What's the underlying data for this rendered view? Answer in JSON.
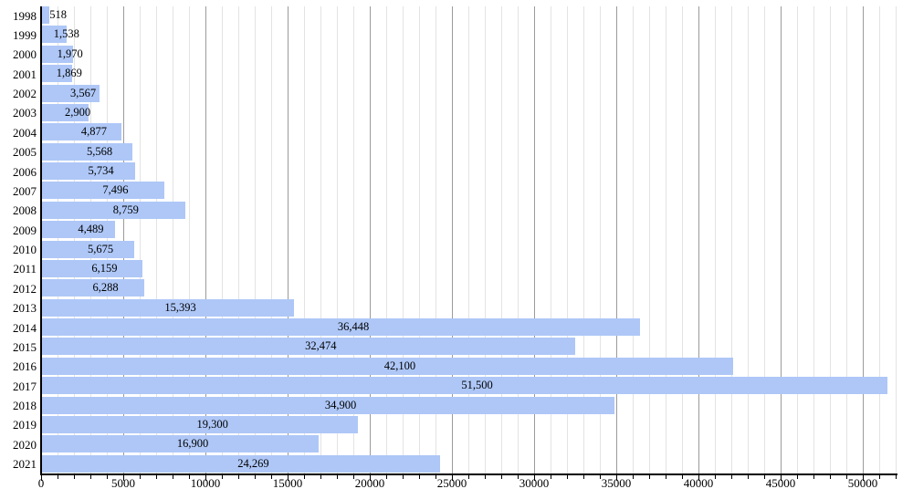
{
  "chart_data": {
    "type": "bar",
    "orientation": "horizontal",
    "title": "",
    "xlabel": "",
    "ylabel": "",
    "legend": "none",
    "grid": "vertical, minor every 1000 (light), major every 5000 (dark)",
    "categories": [
      "1998",
      "1999",
      "2000",
      "2001",
      "2002",
      "2003",
      "2004",
      "2005",
      "2006",
      "2007",
      "2008",
      "2009",
      "2010",
      "2011",
      "2012",
      "2013",
      "2014",
      "2015",
      "2016",
      "2017",
      "2018",
      "2019",
      "2020",
      "2021"
    ],
    "values": [
      518,
      1538,
      1970,
      1869,
      3567,
      2900,
      4877,
      5568,
      5734,
      7496,
      8759,
      4489,
      5675,
      6159,
      6288,
      15393,
      36448,
      32474,
      42100,
      51500,
      34900,
      19300,
      16900,
      24269
    ],
    "value_labels": [
      "518",
      "1,538",
      "1,970",
      "1,869",
      "3,567",
      "2,900",
      "4,877",
      "5,568",
      "5,734",
      "7,496",
      "8,759",
      "4,489",
      "5,675",
      "6,159",
      "6,288",
      "15,393",
      "36,448",
      "32,474",
      "42,100",
      "51,500",
      "34,900",
      "19,300",
      "16,900",
      "24,269"
    ],
    "xlim": [
      0,
      52000
    ],
    "x_major_tick_step": 5000,
    "x_minor_tick_step": 1000,
    "x_tick_labels": [
      "0",
      "5000",
      "10000",
      "15000",
      "20000",
      "25000",
      "30000",
      "35000",
      "40000",
      "45000",
      "50000"
    ],
    "colors": {
      "bar_fill": "#aec7f7",
      "grid_minor": "#e3e3e3",
      "grid_major": "#9b9b9b",
      "axis": "#000000",
      "text": "#000000"
    }
  }
}
